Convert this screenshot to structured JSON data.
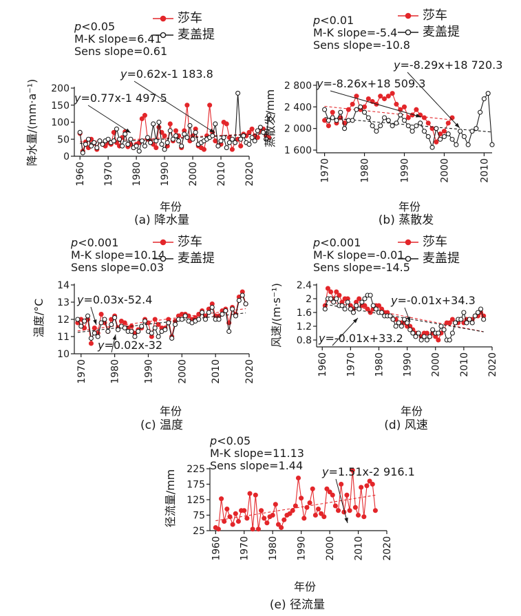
{
  "colors": {
    "shache": "#e3262a",
    "maigaiti": "#1a1a1a"
  },
  "chart_data": [
    {
      "id": "a",
      "type": "line",
      "title": "(a) 降水量",
      "xlabel": "年份",
      "ylabel": "降水量/(mm·a⁻¹)",
      "xlim": [
        1958,
        2020
      ],
      "ylim": [
        0,
        200
      ],
      "xticks": [
        1960,
        1970,
        1980,
        1990,
        2000,
        2010,
        2020
      ],
      "yticks": [
        0,
        50,
        100,
        150,
        200
      ],
      "stats": [
        "p<0.05",
        "M-K slope=6.41",
        "Sens slope=0.61"
      ],
      "legend": [
        "莎车",
        "麦盖提"
      ],
      "fit_labels": [
        "y=0.62x-1 183.8",
        "y=0.77x-1 497.5"
      ],
      "series": [
        {
          "name": "莎车",
          "color": "#e3262a",
          "x0": 1960,
          "values": [
            67,
            15,
            42,
            25,
            50,
            38,
            20,
            45,
            35,
            30,
            40,
            35,
            70,
            40,
            30,
            55,
            72,
            28,
            35,
            25,
            35,
            40,
            110,
            120,
            50,
            45,
            35,
            25,
            85,
            70,
            60,
            30,
            95,
            45,
            75,
            60,
            25,
            75,
            150,
            45,
            60,
            80,
            30,
            25,
            20,
            60,
            150,
            70,
            45,
            30,
            35,
            100,
            95,
            55,
            20,
            40,
            50,
            30,
            65,
            60,
            70,
            80,
            60,
            55,
            75,
            80,
            60,
            55
          ]
        },
        {
          "name": "麦盖提",
          "color": "#1a1a1a",
          "x0": 1960,
          "values": [
            70,
            10,
            35,
            50,
            30,
            40,
            25,
            45,
            35,
            45,
            50,
            40,
            45,
            80,
            50,
            30,
            65,
            35,
            50,
            25,
            30,
            15,
            45,
            30,
            55,
            40,
            95,
            45,
            100,
            35,
            20,
            40,
            75,
            50,
            60,
            45,
            30,
            65,
            55,
            90,
            50,
            70,
            35,
            40,
            45,
            50,
            55,
            60,
            95,
            30,
            45,
            55,
            25,
            40,
            50,
            40,
            185,
            50,
            60,
            40,
            35,
            55,
            45,
            75,
            85,
            70,
            50,
            120
          ]
        }
      ]
    },
    {
      "id": "b",
      "type": "line",
      "title": "(b) 蒸散发",
      "xlabel": "年份",
      "ylabel": "蒸散发/mm",
      "xlim": [
        1968,
        2012
      ],
      "ylim": [
        1550,
        2850
      ],
      "xticks": [
        1970,
        1980,
        1990,
        2000,
        2010
      ],
      "yticks": [
        1600,
        2000,
        2400,
        2800
      ],
      "ytick_labels": [
        "1 600",
        "2 000",
        "2 400",
        "2 800"
      ],
      "stats": [
        "p<0.01",
        "M-K slope=-5.4",
        "Sens slope=-10.8"
      ],
      "legend": [
        "莎车",
        "麦盖提"
      ],
      "fit_labels": [
        "y=-8.29x+18 720.3",
        "y=-8.26x+18 509.3"
      ],
      "series": [
        {
          "name": "莎车",
          "color": "#e3262a",
          "x0": 1970,
          "values": [
            2150,
            2050,
            2300,
            2100,
            2200,
            2100,
            2350,
            2450,
            2600,
            2350,
            2400,
            2550,
            2500,
            2450,
            2600,
            2550,
            2600,
            2650,
            2450,
            2350,
            2400,
            2200,
            2250,
            2350,
            2250,
            2200,
            2100,
            2000,
            1750,
            1900,
            1950,
            2100,
            2200
          ]
        },
        {
          "name": "麦盖提",
          "color": "#1a1a1a",
          "x0": 1970,
          "values": [
            2350,
            2150,
            2200,
            2150,
            2300,
            2000,
            2150,
            2150,
            2350,
            2400,
            2300,
            2200,
            2050,
            1950,
            2050,
            2200,
            2150,
            2050,
            2100,
            2250,
            2150,
            2050,
            1950,
            2050,
            2100,
            1950,
            1850,
            1650,
            2000,
            1800,
            1850,
            1900,
            1800,
            1700,
            1950,
            1850,
            1700,
            1950,
            2000,
            2300,
            2550,
            2650,
            1700
          ]
        }
      ]
    },
    {
      "id": "c",
      "type": "line",
      "title": "(c) 温度",
      "xlabel": "年份",
      "ylabel": "温度/°C",
      "xlim": [
        1968,
        2020
      ],
      "ylim": [
        10,
        14
      ],
      "xticks": [
        1970,
        1980,
        1990,
        2000,
        2010,
        2020
      ],
      "yticks": [
        10,
        11,
        12,
        13,
        14
      ],
      "stats": [
        "p<0.001",
        "M-K slope=10.14",
        "Sens slope=0.03"
      ],
      "legend": [
        "莎车",
        "麦盖提"
      ],
      "fit_labels": [
        "y=0.03x-52.4",
        "y=0.02x-32"
      ],
      "series": [
        {
          "name": "莎车",
          "color": "#e3262a",
          "x0": 1969,
          "values": [
            11.8,
            12.0,
            11.5,
            12.0,
            10.6,
            11.5,
            11.2,
            12.3,
            11.8,
            11.3,
            12.0,
            12.2,
            11.5,
            11.9,
            11.8,
            11.5,
            11.6,
            11.2,
            11.4,
            11.5,
            12.0,
            11.8,
            11.0,
            12.0,
            11.7,
            11.5,
            11.5,
            12.0,
            11.0,
            11.9,
            12.2,
            12.3,
            12.3,
            12.2,
            12.0,
            12.1,
            12.3,
            12.5,
            12.2,
            12.6,
            12.9,
            12.2,
            12.2,
            12.5,
            12.6,
            11.8,
            12.7,
            12.3,
            13.3,
            13.6,
            12.9
          ]
        },
        {
          "name": "麦盖提",
          "color": "#1a1a1a",
          "x0": 1969,
          "values": [
            12.0,
            11.6,
            11.9,
            12.2,
            10.9,
            11.2,
            11.0,
            11.8,
            12.0,
            11.3,
            11.7,
            12.1,
            11.4,
            11.6,
            11.5,
            11.3,
            11.3,
            11.0,
            11.3,
            11.6,
            11.9,
            11.3,
            11.2,
            11.5,
            11.0,
            11.3,
            11.4,
            11.8,
            10.9,
            11.7,
            12.0,
            12.0,
            12.2,
            11.9,
            11.8,
            11.9,
            12.0,
            12.4,
            12.0,
            12.4,
            12.7,
            12.0,
            12.0,
            12.3,
            12.5,
            11.3,
            12.6,
            12.2,
            13.1,
            13.4,
            12.9
          ]
        }
      ]
    },
    {
      "id": "d",
      "type": "line",
      "title": "(d) 风速",
      "xlabel": "年份",
      "ylabel": "风速/(m·s⁻¹)",
      "xlim": [
        1958,
        2020
      ],
      "ylim": [
        0.6,
        2.4
      ],
      "xticks": [
        1960,
        1970,
        1980,
        1990,
        2000,
        2010,
        2020
      ],
      "yticks": [
        0.8,
        1.2,
        1.6,
        2.0,
        2.4
      ],
      "stats": [
        "p<0.001",
        "M-K slope=-0.01",
        "Sens slope=-14.5"
      ],
      "legend": [
        "莎车",
        "麦盖提"
      ],
      "fit_labels": [
        "y=-0.01x+34.3",
        "y=-0.01x+33.2"
      ],
      "series": [
        {
          "name": "莎车",
          "color": "#e3262a",
          "x0": 1961,
          "values": [
            1.8,
            2.3,
            2.2,
            2.0,
            2.2,
            2.1,
            1.9,
            2.0,
            2.0,
            1.8,
            1.7,
            1.9,
            2.0,
            1.8,
            1.8,
            1.7,
            1.6,
            1.7,
            1.8,
            1.8,
            1.7,
            1.6,
            1.6,
            1.5,
            1.4,
            1.4,
            1.3,
            1.3,
            1.3,
            1.2,
            1.2,
            1.1,
            1.0,
            1.0,
            0.9,
            1.0,
            1.0,
            0.9,
            1.0,
            0.9,
            0.8,
            1.0,
            1.1,
            1.3,
            1.3,
            1.4,
            1.3,
            1.3,
            1.4,
            1.3,
            1.4,
            1.4,
            1.4,
            1.5,
            1.5,
            1.6,
            1.5
          ]
        },
        {
          "name": "麦盖提",
          "color": "#1a1a1a",
          "x0": 1961,
          "values": [
            1.7,
            2.0,
            2.0,
            1.9,
            2.0,
            1.8,
            1.8,
            1.7,
            1.9,
            1.7,
            1.6,
            1.8,
            1.7,
            1.9,
            2.0,
            2.1,
            2.1,
            1.8,
            1.7,
            1.6,
            1.6,
            1.5,
            1.5,
            1.5,
            1.4,
            1.2,
            1.3,
            1.2,
            1.4,
            1.3,
            1.1,
            1.0,
            0.9,
            1.0,
            0.8,
            0.9,
            0.8,
            0.9,
            1.1,
            1.0,
            1.0,
            1.2,
            1.1,
            0.8,
            0.8,
            1.0,
            1.3,
            1.4,
            1.4,
            1.6,
            1.3,
            1.4,
            1.3,
            1.5,
            1.6,
            1.7,
            1.4
          ]
        }
      ]
    },
    {
      "id": "e",
      "type": "line",
      "title": "(e) 径流量",
      "xlabel": "年份",
      "ylabel": "径流量/mm",
      "xlim": [
        1958,
        2020
      ],
      "ylim": [
        25,
        225
      ],
      "xticks": [
        1960,
        1970,
        1980,
        1990,
        2000,
        2010,
        2020
      ],
      "yticks": [
        25,
        75,
        125,
        175,
        225
      ],
      "stats": [
        "p<0.05",
        "M-K slope=11.13",
        "Sens slope=1.44"
      ],
      "legend": [],
      "fit_labels": [
        "y=1.51x-2 916.1"
      ],
      "series": [
        {
          "name": "",
          "color": "#e3262a",
          "x0": 1960,
          "values": [
            35,
            30,
            128,
            55,
            95,
            70,
            45,
            80,
            55,
            90,
            90,
            65,
            145,
            30,
            140,
            30,
            90,
            65,
            50,
            70,
            75,
            110,
            45,
            35,
            60,
            75,
            80,
            90,
            105,
            195,
            130,
            65,
            100,
            115,
            160,
            75,
            95,
            80,
            70,
            160,
            150,
            140,
            105,
            90,
            175,
            85,
            140,
            90,
            220,
            100,
            75,
            165,
            70,
            170,
            185,
            175,
            90
          ]
        }
      ]
    }
  ]
}
